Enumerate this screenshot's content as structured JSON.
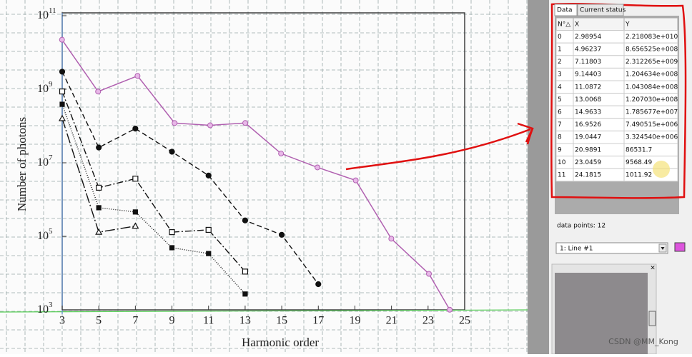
{
  "plot": {
    "y_label": "Number of photons",
    "x_label": "Harmonic order",
    "xlim": [
      3,
      25
    ],
    "ylim": [
      1000,
      100000000000
    ],
    "log_y": true,
    "xticks": [
      3,
      5,
      7,
      9,
      11,
      13,
      15,
      17,
      19,
      21,
      23,
      25
    ],
    "yticks": [
      {
        "value": 1000,
        "label": "10",
        "exp": "3"
      },
      {
        "value": 100000,
        "label": "10",
        "exp": "5"
      },
      {
        "value": 10000000,
        "label": "10",
        "exp": "7"
      },
      {
        "value": 1000000000,
        "label": "10",
        "exp": "9"
      },
      {
        "value": 100000000000,
        "label": "10",
        "exp": "11"
      }
    ],
    "series": [
      {
        "marker": "filled-circle",
        "dash": "7,4",
        "x": [
          3,
          5,
          7,
          9,
          11,
          13,
          15,
          17
        ],
        "values": [
          3000000000,
          26000000,
          85000000,
          20000000,
          4500000,
          270000,
          110000,
          5000
        ]
      },
      {
        "marker": "open-square",
        "dash": "9,3,2,3",
        "x": [
          3,
          5,
          7,
          9,
          11,
          13
        ],
        "values": [
          870000000,
          2100000,
          3700000,
          130000,
          150000,
          11000
        ]
      },
      {
        "marker": "filled-square",
        "dash": "1,2",
        "x": [
          3,
          5,
          7,
          9,
          11,
          13
        ],
        "values": [
          390000000,
          600000,
          460000,
          49000,
          34000,
          2700
        ]
      },
      {
        "marker": "open-triangle",
        "dash": "14,3,2,3",
        "x": [
          3,
          5,
          7
        ],
        "values": [
          160000000,
          130000,
          190000
        ]
      }
    ],
    "digitized_color": "#b060b0"
  },
  "tabs": [
    "Data",
    "Current status"
  ],
  "table": {
    "columns": [
      "N°△",
      "X",
      "Y"
    ],
    "rows": [
      [
        "0",
        "2.98954",
        "2.218083e+010"
      ],
      [
        "1",
        "4.96237",
        "8.656525e+008"
      ],
      [
        "2",
        "7.11803",
        "2.312265e+009"
      ],
      [
        "3",
        "9.14403",
        "1.204634e+008"
      ],
      [
        "4",
        "11.0872",
        "1.043084e+008"
      ],
      [
        "5",
        "13.0068",
        "1.207030e+008"
      ],
      [
        "6",
        "14.9633",
        "1.785677e+007"
      ],
      [
        "7",
        "16.9526",
        "7.490515e+006"
      ],
      [
        "8",
        "19.0447",
        "3.324540e+006"
      ],
      [
        "9",
        "20.9891",
        "86531.7"
      ],
      [
        "10",
        "23.0459",
        "9568.49"
      ],
      [
        "11",
        "24.1815",
        "1011.92"
      ]
    ]
  },
  "status": "data points: 12",
  "curve_select": "1: Line #1",
  "watermark": "CSDN @MM_Kong"
}
